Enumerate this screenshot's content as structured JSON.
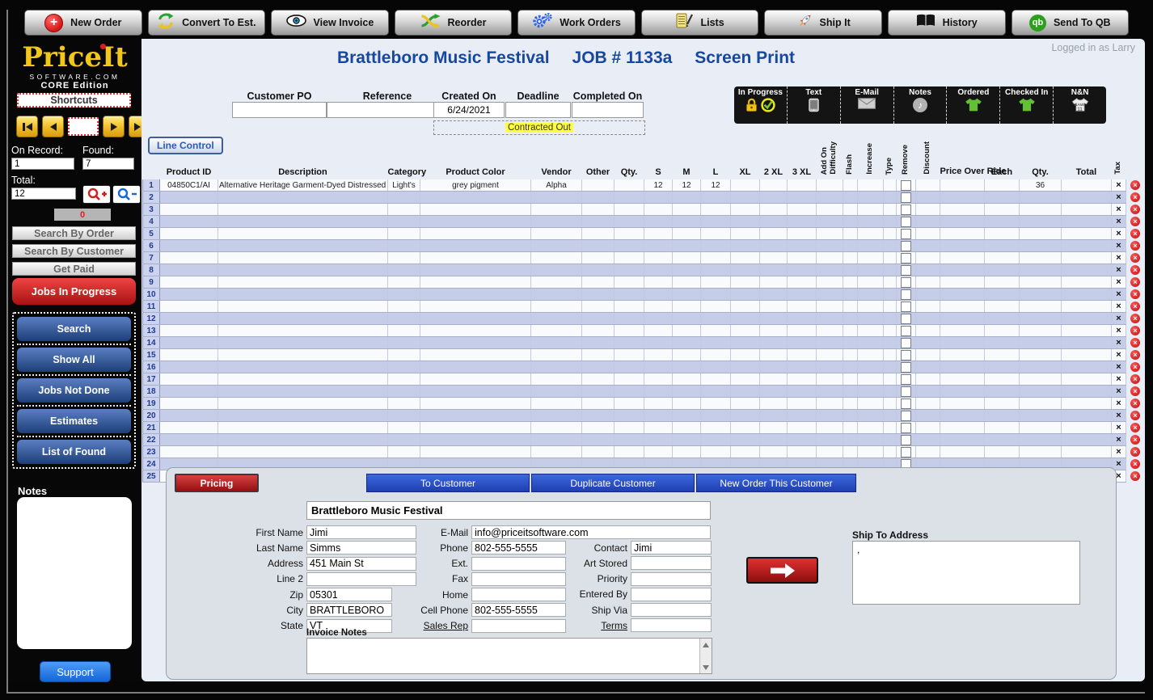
{
  "app": {
    "logged_in_as": "Logged in as Larry"
  },
  "toolbar": {
    "buttons": [
      "New Order",
      "Convert To Est.",
      "View Invoice",
      "Reorder",
      "Work Orders",
      "Lists",
      "Ship It",
      "History",
      "Send To QB"
    ]
  },
  "sidebar": {
    "logo": {
      "name": "PriceIt",
      "domain": "SOFTWARE.COM",
      "edition": "CORE Edition"
    },
    "shortcuts_label": "Shortcuts",
    "record_nav": {
      "record_jump_value": "",
      "on_record_label": "On Record:",
      "on_record_value": "1",
      "found_label": "Found:",
      "found_value": "7",
      "total_label": "Total:",
      "total_value": "12",
      "counter_value": "0"
    },
    "search_buttons": [
      "Search By Order",
      "Search By Customer",
      "Get Paid"
    ],
    "jobs_in_progress_label": "Jobs In Progress",
    "nav_buttons": [
      "Search",
      "Show All",
      "Jobs Not Done",
      "Estimates",
      "List of Found"
    ],
    "notes_label": "Notes",
    "notes_value": "",
    "support_label": "Support"
  },
  "job_header": {
    "customer_name": "Brattleboro Music Festival",
    "job_number": "JOB # 1133a",
    "job_type": "Screen Print"
  },
  "order_info": {
    "fields": [
      {
        "label": "Customer PO",
        "value": ""
      },
      {
        "label": "Reference",
        "value": ""
      },
      {
        "label": "Created On",
        "value": "6/24/2021"
      },
      {
        "label": "Deadline",
        "value": ""
      },
      {
        "label": "Completed On",
        "value": ""
      }
    ],
    "contracted_out_label": "Contracted Out"
  },
  "status_bar": {
    "items": [
      {
        "label": "In Progress"
      },
      {
        "label": "Text"
      },
      {
        "label": "E-Mail"
      },
      {
        "label": "Notes"
      },
      {
        "label": "Ordered"
      },
      {
        "label": "Checked In"
      },
      {
        "label": "N&N",
        "shirt_line1": "NAME",
        "shirt_line2": "11"
      }
    ]
  },
  "line_table": {
    "line_control_label": "Line Control",
    "columns": {
      "product_id": "Product ID",
      "description": "Description",
      "category": "Category",
      "product_color": "Product Color",
      "vendor": "Vendor",
      "other": "Other",
      "qty": "Qty.",
      "s": "S",
      "m": "M",
      "l": "L",
      "xl": "XL",
      "xxl": "2 XL",
      "xxxl": "3 XL",
      "add_on": "Add On",
      "difficulty": "Difficulty",
      "flash": "Flash",
      "increase": "Increase",
      "type": "Type",
      "remove": "Remove",
      "discount": "Discount",
      "price_over_ride": "Price Over Ride",
      "each": "Each",
      "qty2": "Qty.",
      "total": "Total",
      "tax": "Tax"
    },
    "row_count": 25,
    "rows": [
      {
        "num": 1,
        "product_id": "04850C1/AI",
        "description": "Alternative Heritage Garment-Dyed Distressed T-",
        "category": "Light's",
        "product_color": "grey pigment",
        "vendor": "Alpha",
        "s": "12",
        "m": "12",
        "l": "12",
        "qty2": "36"
      }
    ]
  },
  "customer_panel": {
    "pricing_label": "Pricing",
    "action_buttons": [
      "To Customer",
      "Duplicate Customer",
      "New Order This Customer"
    ],
    "company_name": "Brattleboro Music Festival",
    "left_fields": [
      {
        "label": "First Name",
        "value": "Jimi"
      },
      {
        "label": "Last Name",
        "value": "Simms"
      },
      {
        "label": "Address",
        "value": "451 Main St"
      },
      {
        "label": "Line 2",
        "value": ""
      },
      {
        "label": "Zip",
        "value": "05301"
      },
      {
        "label": "City",
        "value": "BRATTLEBORO"
      },
      {
        "label": "State",
        "value": "VT"
      }
    ],
    "middle_fields": [
      {
        "label": "E-Mail",
        "value": "info@priceitsoftware.com"
      },
      {
        "label": "Phone",
        "value": "802-555-5555"
      },
      {
        "label": "Ext.",
        "value": ""
      },
      {
        "label": "Fax",
        "value": ""
      },
      {
        "label": "Home",
        "value": ""
      },
      {
        "label": "Cell Phone",
        "value": "802-555-5555"
      },
      {
        "label": "Sales Rep",
        "value": "",
        "u": true
      }
    ],
    "right_fields": [
      {
        "label": "Contact",
        "value": "Jimi"
      },
      {
        "label": "Art Stored",
        "value": ""
      },
      {
        "label": "Priority",
        "value": ""
      },
      {
        "label": "Entered By",
        "value": ""
      },
      {
        "label": "Ship Via",
        "value": ""
      },
      {
        "label": "Terms",
        "value": "",
        "u": true
      }
    ],
    "ship_to_label": "Ship To Address",
    "ship_to_value": ",",
    "invoice_notes_label": "Invoice Notes",
    "invoice_notes_value": ""
  }
}
